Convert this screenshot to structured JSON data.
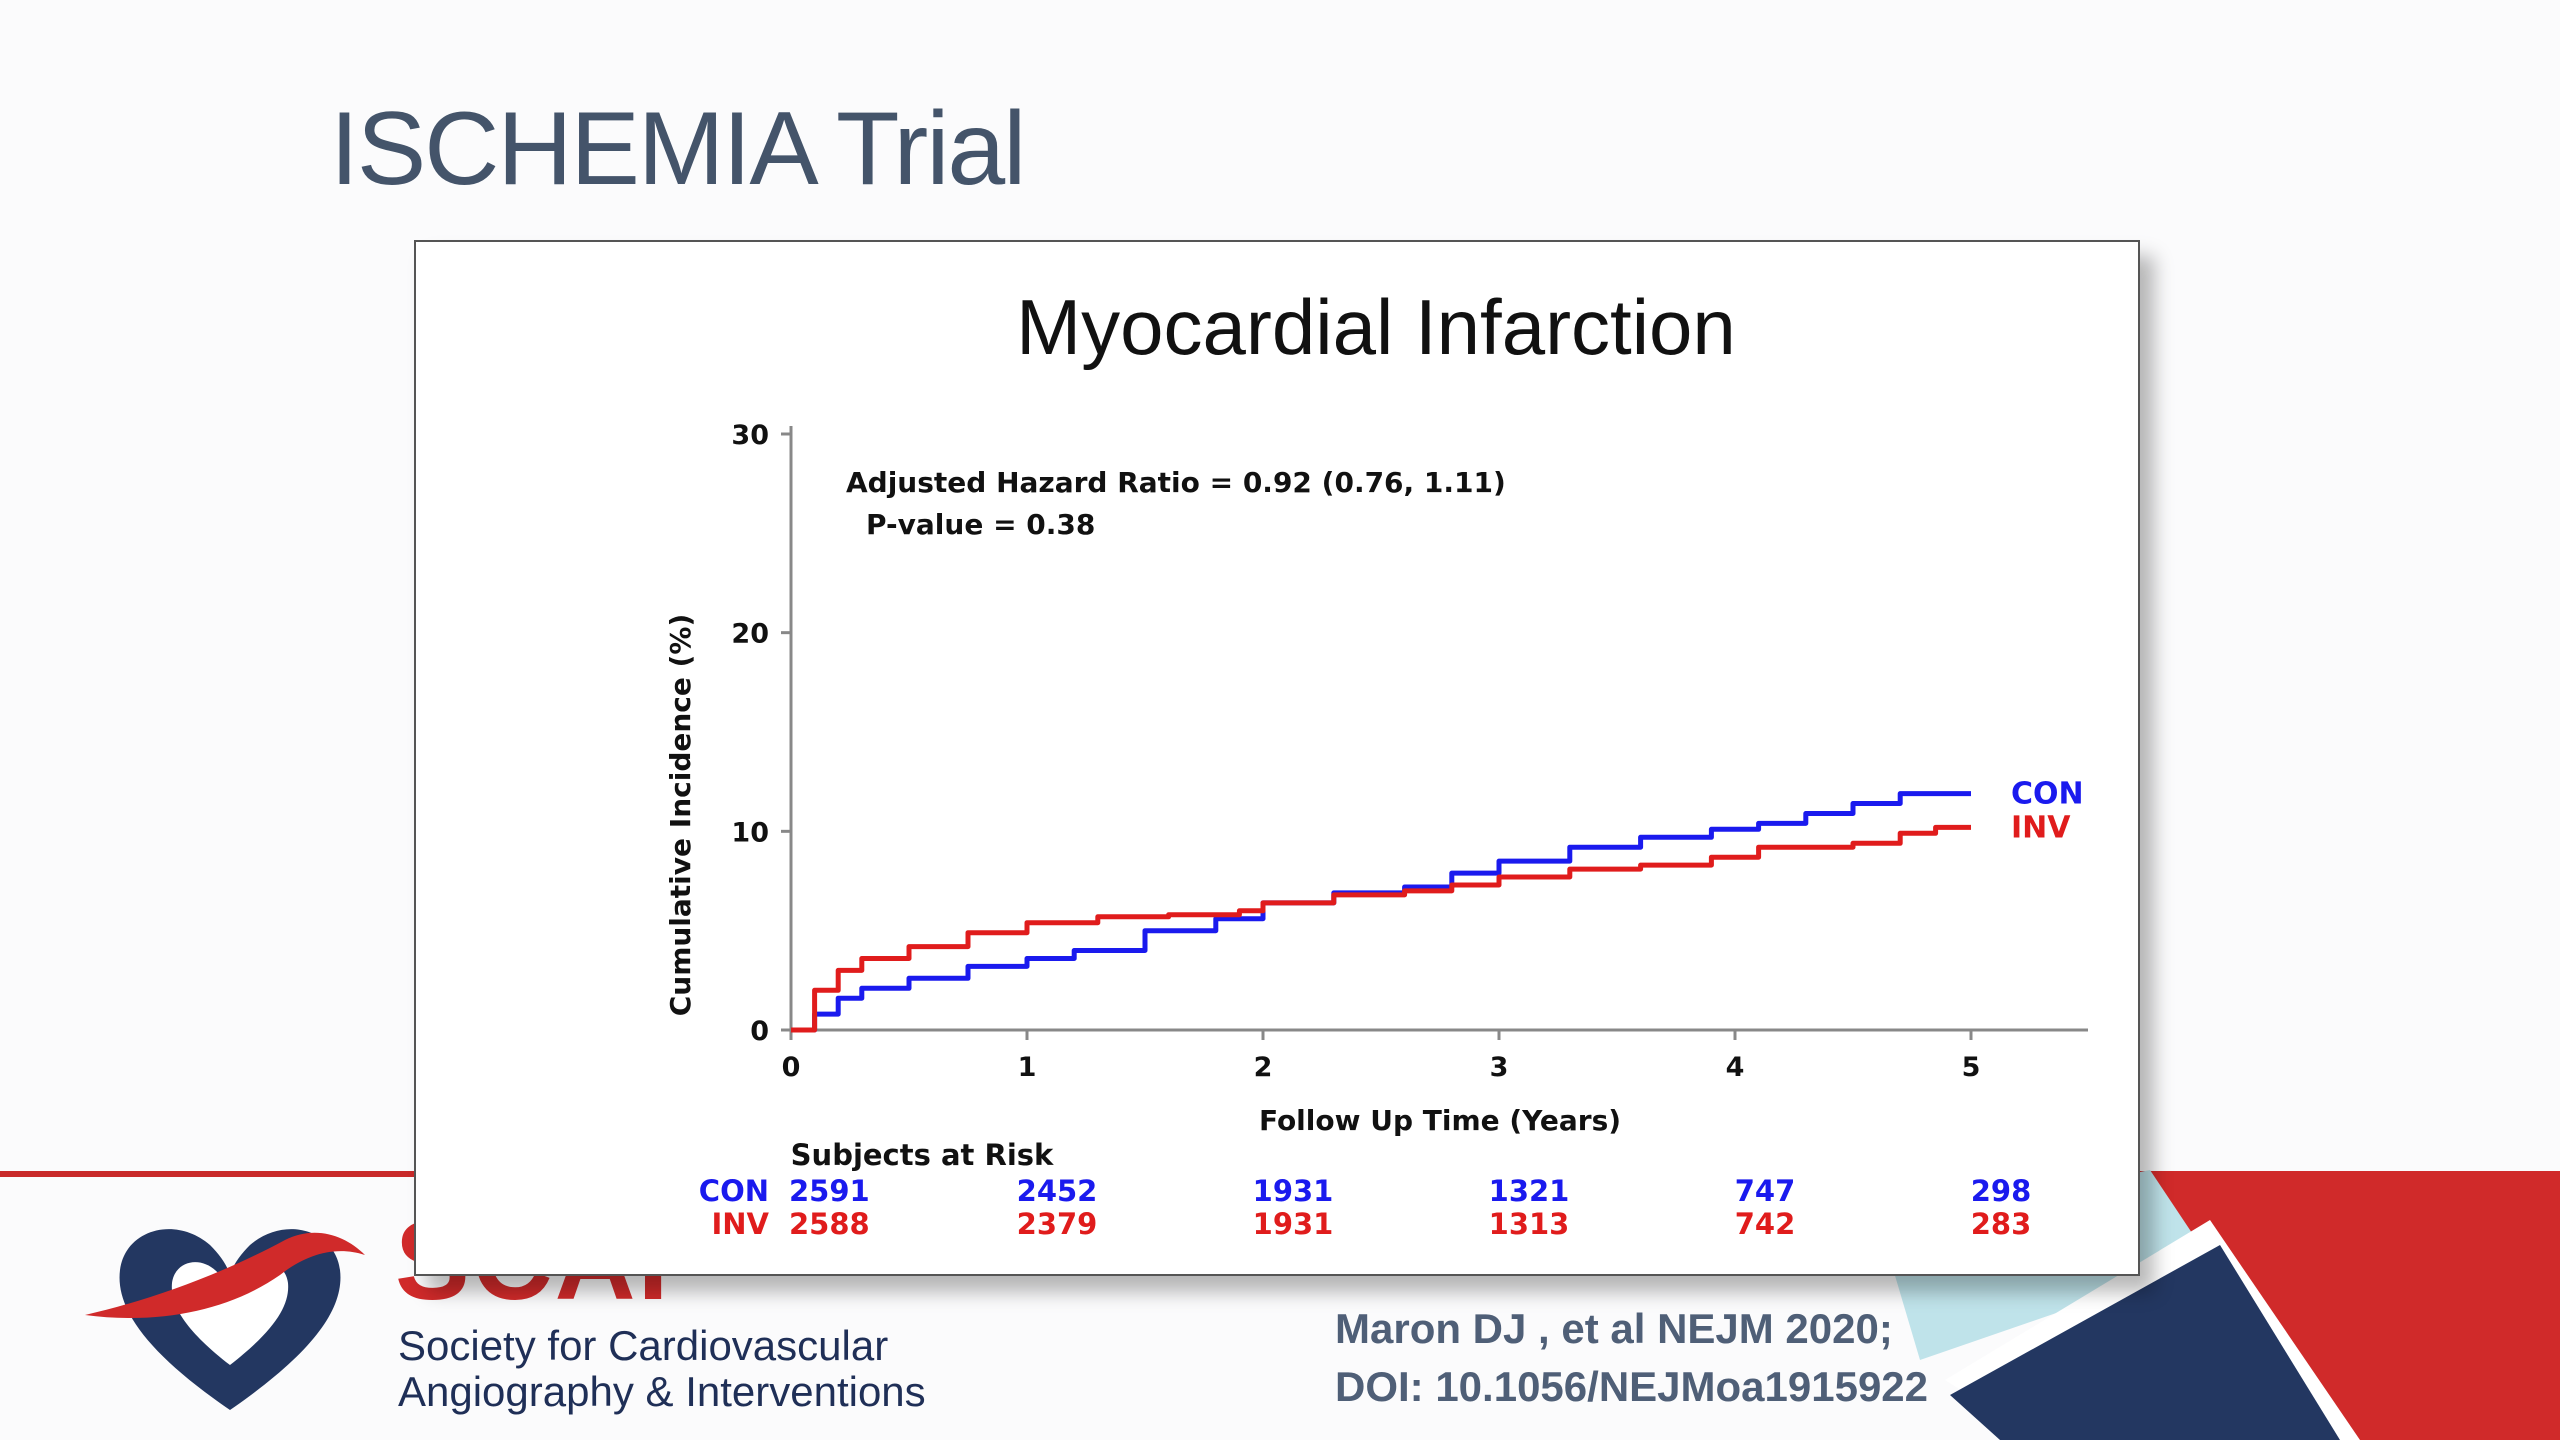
{
  "slide": {
    "title": "ISCHEMIA Trial",
    "citation_line_1": "Maron DJ , et al NEJM 2020;",
    "citation_line_2": "DOI: 10.1056/NEJMoa1915922",
    "logo": {
      "acronym": "SCAI",
      "name_line_1": "Society for Cardiovascular",
      "name_line_2": "Angiography & Interventions"
    },
    "colors": {
      "title": "#44546a",
      "accent_red": "#d02a2a",
      "navy": "#1f2f57",
      "teal": "#bfe3ea"
    }
  },
  "chart_data": {
    "type": "line",
    "title": "Myocardial Infarction",
    "xlabel": "Follow Up Time (Years)",
    "ylabel": "Cumulative Incidence (%)",
    "xlim": [
      0,
      5
    ],
    "ylim": [
      0,
      30
    ],
    "x_ticks": [
      "0",
      "1",
      "2",
      "3",
      "4",
      "5"
    ],
    "y_ticks": [
      "0",
      "10",
      "20",
      "30"
    ],
    "grid": false,
    "annotations": [
      "Adjusted Hazard Ratio = 0.92 (0.76, 1.11)",
      "P-value = 0.38"
    ],
    "series": [
      {
        "name": "CON",
        "color": "#1a1aee",
        "points": [
          [
            0,
            0
          ],
          [
            0.1,
            0.8
          ],
          [
            0.2,
            1.6
          ],
          [
            0.3,
            2.1
          ],
          [
            0.5,
            2.6
          ],
          [
            0.75,
            3.2
          ],
          [
            1.0,
            3.6
          ],
          [
            1.2,
            4.0
          ],
          [
            1.5,
            5.0
          ],
          [
            1.8,
            5.6
          ],
          [
            2.0,
            6.4
          ],
          [
            2.3,
            6.9
          ],
          [
            2.6,
            7.2
          ],
          [
            2.8,
            7.9
          ],
          [
            3.0,
            8.5
          ],
          [
            3.3,
            9.2
          ],
          [
            3.6,
            9.7
          ],
          [
            3.9,
            10.1
          ],
          [
            4.1,
            10.4
          ],
          [
            4.3,
            10.9
          ],
          [
            4.5,
            11.4
          ],
          [
            4.7,
            11.9
          ],
          [
            5.0,
            11.9
          ]
        ]
      },
      {
        "name": "INV",
        "color": "#e01c1c",
        "points": [
          [
            0,
            0
          ],
          [
            0.1,
            2.0
          ],
          [
            0.2,
            3.0
          ],
          [
            0.3,
            3.6
          ],
          [
            0.5,
            4.2
          ],
          [
            0.75,
            4.9
          ],
          [
            1.0,
            5.4
          ],
          [
            1.3,
            5.7
          ],
          [
            1.6,
            5.8
          ],
          [
            1.9,
            6.0
          ],
          [
            2.0,
            6.4
          ],
          [
            2.3,
            6.8
          ],
          [
            2.6,
            7.0
          ],
          [
            2.8,
            7.3
          ],
          [
            3.0,
            7.7
          ],
          [
            3.3,
            8.1
          ],
          [
            3.6,
            8.3
          ],
          [
            3.9,
            8.7
          ],
          [
            4.1,
            9.2
          ],
          [
            4.5,
            9.4
          ],
          [
            4.7,
            9.9
          ],
          [
            4.85,
            10.2
          ],
          [
            5.0,
            10.2
          ]
        ]
      }
    ],
    "risk_table": {
      "title": "Subjects at Risk",
      "rows": [
        {
          "label": "CON",
          "color": "#1a1aee",
          "values": [
            "2591",
            "2452",
            "1931",
            "1321",
            "747",
            "298"
          ]
        },
        {
          "label": "INV",
          "color": "#e01c1c",
          "values": [
            "2588",
            "2379",
            "1931",
            "1313",
            "742",
            "283"
          ]
        }
      ]
    }
  }
}
